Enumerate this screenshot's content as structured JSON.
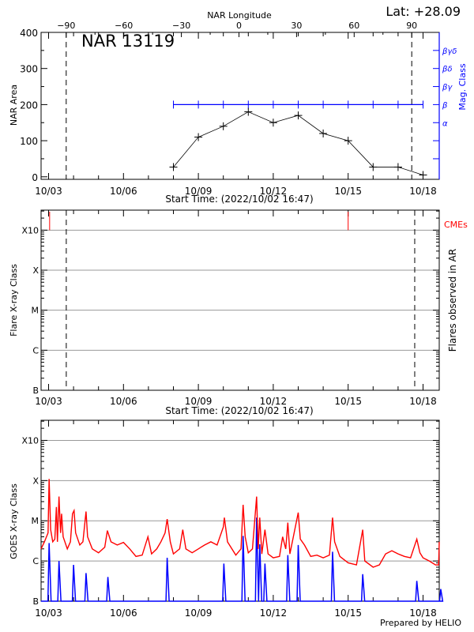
{
  "header": {
    "latitude_label": "Lat: +28.09",
    "longitude_axis_label": "NAR Longitude",
    "region_title": "NAR 13119"
  },
  "footer": {
    "credit": "Prepared by HELIO"
  },
  "colors": {
    "axis": "#000000",
    "magclass": "#0000ff",
    "goes_long": "#ff0000",
    "goes_short": "#0000ff",
    "cme": "#ff0000",
    "grid": "#999999"
  },
  "chart_data": [
    {
      "type": "line",
      "panel": "area",
      "ylabel": "NAR Area",
      "y2label": "Mag. Class",
      "xlabel": "Start Time: (2022/10/02 16:47)",
      "start_time": "2022-10-02T16:47",
      "x_tick_labels": [
        "10/03",
        "10/06",
        "10/09",
        "10/12",
        "10/15",
        "10/18"
      ],
      "y_tick_labels": [
        "0",
        "100",
        "200",
        "300",
        "400"
      ],
      "ylim": [
        0,
        400
      ],
      "longitude_ticks": [
        "-90",
        "-60",
        "-30",
        "0",
        "30",
        "60",
        "90"
      ],
      "limb_longitudes": [
        -90,
        90
      ],
      "area_series": {
        "x": [
          "2022-10-08",
          "2022-10-09",
          "2022-10-10",
          "2022-10-11",
          "2022-10-12",
          "2022-10-13",
          "2022-10-14",
          "2022-10-15",
          "2022-10-16",
          "2022-10-17",
          "2022-10-18"
        ],
        "values": [
          27,
          110,
          140,
          180,
          150,
          170,
          120,
          100,
          27,
          27,
          5
        ]
      },
      "mag_class_levels": [
        {
          "label": "α",
          "area_equiv": 150
        },
        {
          "label": "β",
          "area_equiv": 200
        },
        {
          "label": "βγ",
          "area_equiv": 250
        },
        {
          "label": "βδ",
          "area_equiv": 300
        },
        {
          "label": "βγδ",
          "area_equiv": 350
        }
      ],
      "mag_class_series": {
        "x": [
          "2022-10-08",
          "2022-10-09",
          "2022-10-10",
          "2022-10-11",
          "2022-10-12",
          "2022-10-13",
          "2022-10-14",
          "2022-10-15",
          "2022-10-16",
          "2022-10-17",
          "2022-10-18"
        ],
        "values": [
          "β",
          "β",
          "β",
          "β",
          "β",
          "β",
          "β",
          "β",
          "β",
          "β",
          "β"
        ]
      }
    },
    {
      "type": "scatter",
      "panel": "flares",
      "ylabel": "Flare X-ray Class",
      "y2label": "Flares observed in AR",
      "xlabel": "Start Time: (2022/10/02 16:47)",
      "x_tick_labels": [
        "10/03",
        "10/06",
        "10/09",
        "10/12",
        "10/15",
        "10/18"
      ],
      "y_tick_labels": [
        "B",
        "C",
        "M",
        "X",
        "X10"
      ],
      "log_scale": true,
      "grid": true,
      "cme_label": "CMEs",
      "cme_times": [
        "2022-10-03T01:00",
        "2022-10-15T00:00"
      ],
      "limb_times": [
        "2022-10-03T17:00",
        "2022-10-17T16:00"
      ],
      "flares": []
    },
    {
      "type": "line",
      "panel": "goes",
      "ylabel": "GOES X-ray Class",
      "x_tick_labels": [
        "10/03",
        "10/06",
        "10/09",
        "10/12",
        "10/15",
        "10/18"
      ],
      "y_tick_labels": [
        "B",
        "C",
        "M",
        "X",
        "X10"
      ],
      "log_scale": true,
      "grid": true,
      "long_channel": [
        [
          "2022-10-02T16:47",
          2e-06
        ],
        [
          "2022-10-02T20:00",
          3e-06
        ],
        [
          "2022-10-02T23:30",
          5e-06
        ],
        [
          "2022-10-03T00:30",
          0.00011
        ],
        [
          "2022-10-03T02:00",
          6e-06
        ],
        [
          "2022-10-03T04:00",
          3e-06
        ],
        [
          "2022-10-03T06:00",
          3.5e-06
        ],
        [
          "2022-10-03T07:30",
          2.2e-05
        ],
        [
          "2022-10-03T08:30",
          3e-06
        ],
        [
          "2022-10-03T10:00",
          4e-05
        ],
        [
          "2022-10-03T11:30",
          5e-06
        ],
        [
          "2022-10-03T12:30",
          1.5e-05
        ],
        [
          "2022-10-03T14:00",
          4e-06
        ],
        [
          "2022-10-03T18:00",
          2e-06
        ],
        [
          "2022-10-03T21:00",
          3e-06
        ],
        [
          "2022-10-03T23:00",
          1.5e-05
        ],
        [
          "2022-10-04T00:30",
          1.8e-05
        ],
        [
          "2022-10-04T02:00",
          5e-06
        ],
        [
          "2022-10-04T06:00",
          2.5e-06
        ],
        [
          "2022-10-04T09:00",
          3e-06
        ],
        [
          "2022-10-04T12:00",
          1.7e-05
        ],
        [
          "2022-10-04T13:30",
          4e-06
        ],
        [
          "2022-10-04T18:00",
          2e-06
        ],
        [
          "2022-10-05T00:00",
          1.6e-06
        ],
        [
          "2022-10-05T06:00",
          2.2e-06
        ],
        [
          "2022-10-05T08:30",
          5.7e-06
        ],
        [
          "2022-10-05T12:00",
          3e-06
        ],
        [
          "2022-10-05T18:00",
          2.5e-06
        ],
        [
          "2022-10-06T00:00",
          2.9e-06
        ],
        [
          "2022-10-06T06:00",
          2e-06
        ],
        [
          "2022-10-06T12:00",
          1.3e-06
        ],
        [
          "2022-10-06T18:00",
          1.4e-06
        ],
        [
          "2022-10-06T23:30",
          4e-06
        ],
        [
          "2022-10-07T03:00",
          1.5e-06
        ],
        [
          "2022-10-07T08:00",
          2e-06
        ],
        [
          "2022-10-07T12:00",
          3e-06
        ],
        [
          "2022-10-07T16:00",
          5e-06
        ],
        [
          "2022-10-07T18:00",
          1.1e-05
        ],
        [
          "2022-10-07T21:00",
          3e-06
        ],
        [
          "2022-10-08T00:00",
          1.5e-06
        ],
        [
          "2022-10-08T06:00",
          2e-06
        ],
        [
          "2022-10-08T09:00",
          6e-06
        ],
        [
          "2022-10-08T12:00",
          2e-06
        ],
        [
          "2022-10-08T18:00",
          1.6e-06
        ],
        [
          "2022-10-09T00:00",
          2e-06
        ],
        [
          "2022-10-09T06:00",
          2.5e-06
        ],
        [
          "2022-10-09T12:00",
          3e-06
        ],
        [
          "2022-10-09T18:00",
          2.5e-06
        ],
        [
          "2022-10-10T00:00",
          7e-06
        ],
        [
          "2022-10-10T01:00",
          1.2e-05
        ],
        [
          "2022-10-10T04:00",
          3e-06
        ],
        [
          "2022-10-10T12:00",
          1.4e-06
        ],
        [
          "2022-10-10T17:00",
          2e-06
        ],
        [
          "2022-10-10T19:00",
          2.5e-05
        ],
        [
          "2022-10-10T21:00",
          4e-06
        ],
        [
          "2022-10-11T00:00",
          1.6e-06
        ],
        [
          "2022-10-11T04:00",
          2e-06
        ],
        [
          "2022-10-11T08:00",
          4e-05
        ],
        [
          "2022-10-11T09:30",
          2e-06
        ],
        [
          "2022-10-11T11:00",
          1.2e-05
        ],
        [
          "2022-10-11T13:00",
          1.5e-06
        ],
        [
          "2022-10-11T16:00",
          6e-06
        ],
        [
          "2022-10-11T19:00",
          1.5e-06
        ],
        [
          "2022-10-12T00:00",
          1.2e-06
        ],
        [
          "2022-10-12T06:00",
          1.3e-06
        ],
        [
          "2022-10-12T09:00",
          4e-06
        ],
        [
          "2022-10-12T12:00",
          2e-06
        ],
        [
          "2022-10-12T14:00",
          9e-06
        ],
        [
          "2022-10-12T16:00",
          1.5e-06
        ],
        [
          "2022-10-13T00:00",
          1.6e-05
        ],
        [
          "2022-10-13T02:00",
          3.5e-06
        ],
        [
          "2022-10-13T06:00",
          2.5e-06
        ],
        [
          "2022-10-13T12:00",
          1.3e-06
        ],
        [
          "2022-10-13T18:00",
          1.4e-06
        ],
        [
          "2022-10-14T00:00",
          1.2e-06
        ],
        [
          "2022-10-14T06:00",
          1.4e-06
        ],
        [
          "2022-10-14T09:00",
          1.2e-05
        ],
        [
          "2022-10-14T11:00",
          3e-06
        ],
        [
          "2022-10-14T16:00",
          1.3e-06
        ],
        [
          "2022-10-15T00:00",
          9e-07
        ],
        [
          "2022-10-15T08:00",
          8e-07
        ],
        [
          "2022-10-15T14:00",
          6e-06
        ],
        [
          "2022-10-15T16:00",
          1e-06
        ],
        [
          "2022-10-16T00:00",
          7e-07
        ],
        [
          "2022-10-16T06:00",
          8e-07
        ],
        [
          "2022-10-16T12:00",
          1.5e-06
        ],
        [
          "2022-10-16T18:00",
          1.8e-06
        ],
        [
          "2022-10-17T00:00",
          1.5e-06
        ],
        [
          "2022-10-17T06:00",
          1.3e-06
        ],
        [
          "2022-10-17T12:00",
          1.2e-06
        ],
        [
          "2022-10-17T18:00",
          3.5e-06
        ],
        [
          "2022-10-17T21:00",
          1.6e-06
        ],
        [
          "2022-10-18T00:00",
          1.2e-06
        ],
        [
          "2022-10-18T06:00",
          1e-06
        ],
        [
          "2022-10-18T12:00",
          8e-07
        ],
        [
          "2022-10-18T15:00",
          8e-07
        ],
        [
          "2022-10-18T17:00",
          3e-06
        ]
      ],
      "short_channel_peaks": [
        [
          "2022-10-03T00:30",
          2.8e-06
        ],
        [
          "2022-10-03T10:00",
          1e-06
        ],
        [
          "2022-10-04T00:00",
          8e-07
        ],
        [
          "2022-10-04T12:00",
          5e-07
        ],
        [
          "2022-10-05T09:00",
          4e-07
        ],
        [
          "2022-10-07T18:00",
          1.2e-06
        ],
        [
          "2022-10-10T00:30",
          8.6e-07
        ],
        [
          "2022-10-10T19:00",
          4.2e-06
        ],
        [
          "2022-10-11T08:00",
          1.2e-05
        ],
        [
          "2022-10-11T11:00",
          2.6e-06
        ],
        [
          "2022-10-11T16:00",
          8.6e-07
        ],
        [
          "2022-10-12T14:00",
          1.4e-06
        ],
        [
          "2022-10-13T00:00",
          2.5e-06
        ],
        [
          "2022-10-14T09:00",
          1.7e-06
        ],
        [
          "2022-10-15T14:00",
          4.7e-07
        ],
        [
          "2022-10-17T18:00",
          3.2e-07
        ],
        [
          "2022-10-18T17:00",
          2e-07
        ]
      ]
    }
  ]
}
